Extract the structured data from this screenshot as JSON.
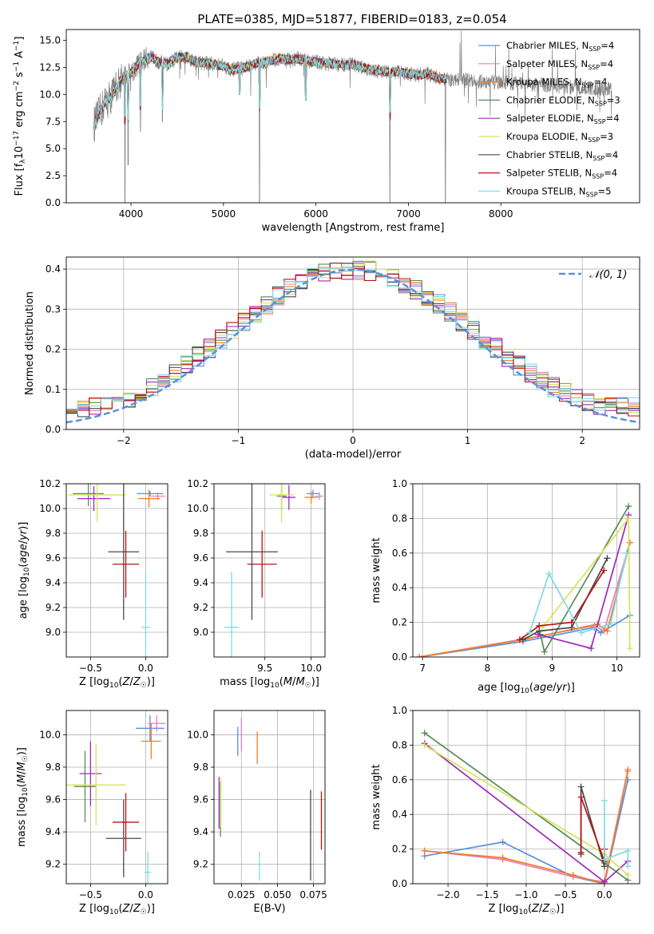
{
  "figure_title": "PLATE=0385, MJD=51877, FIBERID=0183, z=0.054",
  "colors": {
    "Chabrier MILES": "#5b8fdc",
    "Salpeter MILES": "#e57fbf",
    "Kroupa MILES": "#f07f22",
    "Chabrier ELODIE": "#5a8a5a",
    "Salpeter ELODIE": "#9a2bb8",
    "Kroupa ELODIE": "#d6e35a",
    "Chabrier STELIB": "#4a4a4a",
    "Salpeter STELIB": "#b51515",
    "Kroupa STELIB": "#7fdddf",
    "gaussian": "#5b8fdc",
    "spectrum_data": "#808080"
  },
  "chart_data": [
    {
      "id": "spectrum",
      "type": "line",
      "title": "PLATE=0385, MJD=51877, FIBERID=0183, z=0.054",
      "xlabel": "wavelength [Angstrom, rest frame]",
      "ylabel": "Flux [f_λ 10^-17 erg cm^-2 s^-1 A^-1]",
      "xlim": [
        3300,
        9500
      ],
      "ylim": [
        0,
        16
      ],
      "xticks": [
        "4000",
        "5000",
        "6000",
        "7000",
        "8000"
      ],
      "yticks": [
        "0.0",
        "2.5",
        "5.0",
        "7.5",
        "10.0",
        "12.5",
        "15.0"
      ],
      "grid": false,
      "legend_position": "right",
      "legend": [
        {
          "model": "Chabrier MILES",
          "label": "Chabrier MILES, N",
          "nssp": "=4"
        },
        {
          "model": "Salpeter MILES",
          "label": "Salpeter MILES, N",
          "nssp": "=4"
        },
        {
          "model": "Kroupa MILES",
          "label": "Kroupa MILES, N",
          "nssp": "=4"
        },
        {
          "model": "Chabrier ELODIE",
          "label": "Chabrier ELODIE, N",
          "nssp": "=3"
        },
        {
          "model": "Salpeter ELODIE",
          "label": "Salpeter ELODIE, N",
          "nssp": "=4"
        },
        {
          "model": "Kroupa ELODIE",
          "label": "Kroupa ELODIE, N",
          "nssp": "=3"
        },
        {
          "model": "Chabrier STELIB",
          "label": "Chabrier STELIB, N",
          "nssp": "=4"
        },
        {
          "model": "Salpeter STELIB",
          "label": "Salpeter STELIB, N",
          "nssp": "=4"
        },
        {
          "model": "Kroupa STELIB",
          "label": "Kroupa STELIB, N",
          "nssp": "=5"
        }
      ],
      "continuum": [
        [
          3600,
          7.2
        ],
        [
          3700,
          9.0
        ],
        [
          3800,
          10.0
        ],
        [
          3900,
          11.5
        ],
        [
          4000,
          12.0
        ],
        [
          4100,
          13.0
        ],
        [
          4200,
          13.5
        ],
        [
          4300,
          13.0
        ],
        [
          4400,
          12.8
        ],
        [
          4500,
          13.4
        ],
        [
          4600,
          13.5
        ],
        [
          4700,
          13.0
        ],
        [
          4800,
          12.9
        ],
        [
          4900,
          12.8
        ],
        [
          5000,
          12.6
        ],
        [
          5100,
          12.3
        ],
        [
          5200,
          12.4
        ],
        [
          5300,
          12.7
        ],
        [
          5400,
          12.9
        ],
        [
          5500,
          13.1
        ],
        [
          5600,
          13.3
        ],
        [
          5700,
          13.2
        ],
        [
          5800,
          13.3
        ],
        [
          5900,
          13.1
        ],
        [
          6000,
          13.0
        ],
        [
          6100,
          12.9
        ],
        [
          6200,
          12.8
        ],
        [
          6300,
          12.7
        ],
        [
          6400,
          12.8
        ],
        [
          6500,
          12.5
        ],
        [
          6600,
          12.3
        ],
        [
          6700,
          12.2
        ],
        [
          6800,
          12.0
        ],
        [
          6900,
          12.1
        ],
        [
          7000,
          11.9
        ],
        [
          7100,
          11.8
        ],
        [
          7200,
          11.9
        ],
        [
          7300,
          11.6
        ],
        [
          7400,
          11.4
        ]
      ],
      "data_x_range": [
        3600,
        9200
      ],
      "absorption_features": [
        {
          "wavelength": 3934,
          "min_flux": 0.0
        },
        {
          "wavelength": 3969,
          "min_flux": 3.5
        },
        {
          "wavelength": 4102,
          "min_flux": 6.6
        },
        {
          "wavelength": 4340,
          "min_flux": 7.5
        },
        {
          "wavelength": 5175,
          "min_flux": 10.0
        },
        {
          "wavelength": 5390,
          "min_flux": 0.0
        },
        {
          "wavelength": 5890,
          "min_flux": 9.5
        },
        {
          "wavelength": 6800,
          "min_flux": 0.0
        }
      ]
    },
    {
      "id": "residuals",
      "type": "histogram",
      "xlabel": "(data-model)/error",
      "ylabel": "Normed distribution",
      "xlim": [
        -2.5,
        2.5
      ],
      "ylim": [
        0,
        0.43
      ],
      "xticks": [
        "−2",
        "−1",
        "0",
        "1",
        "2"
      ],
      "yticks": [
        "0.0",
        "0.1",
        "0.2",
        "0.3",
        "0.4"
      ],
      "grid": true,
      "legend_position": "top-right",
      "gaussian_label": "𝒩(0, 1)",
      "bin_width": 0.1
    },
    {
      "id": "age_vs_Z",
      "type": "errorbar",
      "xlabel": "Z [log10(Z/Z☉)]",
      "ylabel": "age [log10(age/yr)]",
      "xlim": [
        -0.72,
        0.2
      ],
      "ylim": [
        8.8,
        10.2
      ],
      "xticks": [
        "−0.5",
        "0.0"
      ],
      "yticks": [
        "9.0",
        "9.2",
        "9.4",
        "9.6",
        "9.8",
        "10.0",
        "10.2"
      ],
      "grid": true,
      "points": [
        {
          "model": "Chabrier MILES",
          "x": 0.04,
          "xerr": 0.12,
          "y": 10.12,
          "yerr": 0.02
        },
        {
          "model": "Salpeter MILES",
          "x": 0.11,
          "xerr": 0.07,
          "y": 10.1,
          "yerr": 0.03
        },
        {
          "model": "Kroupa MILES",
          "x": 0.03,
          "xerr": 0.1,
          "y": 10.08,
          "yerr": 0.07
        },
        {
          "model": "Chabrier ELODIE",
          "x": -0.52,
          "xerr": 0.14,
          "y": 10.12,
          "yerr": 0.1
        },
        {
          "model": "Salpeter ELODIE",
          "x": -0.47,
          "xerr": 0.15,
          "y": 10.08,
          "yerr": 0.1
        },
        {
          "model": "Kroupa ELODIE",
          "x": -0.44,
          "xerr": 0.26,
          "y": 10.11,
          "yerr": 0.22
        },
        {
          "model": "Chabrier STELIB",
          "x": -0.2,
          "xerr": 0.14,
          "y": 9.65,
          "yerr": 0.55
        },
        {
          "model": "Salpeter STELIB",
          "x": -0.18,
          "xerr": 0.12,
          "y": 9.55,
          "yerr": 0.27
        },
        {
          "model": "Kroupa STELIB",
          "x": 0.0,
          "xerr": 0.04,
          "y": 9.04,
          "yerr": 0.45
        }
      ]
    },
    {
      "id": "age_vs_mass",
      "type": "errorbar",
      "xlabel": "mass [log10(M/M☉)]",
      "ylabel": "",
      "xlim": [
        8.95,
        10.15
      ],
      "ylim": [
        8.8,
        10.2
      ],
      "xticks": [
        "9.5",
        "10.0"
      ],
      "yticks": [
        "9.0",
        "9.2",
        "9.4",
        "9.6",
        "9.8",
        "10.0",
        "10.2"
      ],
      "grid": true,
      "points": [
        {
          "model": "Chabrier MILES",
          "x": 10.02,
          "xerr": 0.07,
          "y": 10.12,
          "yerr": 0.03
        },
        {
          "model": "Salpeter MILES",
          "x": 10.09,
          "xerr": 0.04,
          "y": 10.1,
          "yerr": 0.03
        },
        {
          "model": "Kroupa MILES",
          "x": 10.0,
          "xerr": 0.07,
          "y": 10.09,
          "yerr": 0.05
        },
        {
          "model": "Chabrier ELODIE",
          "x": 9.68,
          "xerr": 0.05,
          "y": 10.1,
          "yerr": 0.12
        },
        {
          "model": "Salpeter ELODIE",
          "x": 9.76,
          "xerr": 0.07,
          "y": 10.09,
          "yerr": 0.1
        },
        {
          "model": "Kroupa ELODIE",
          "x": 9.68,
          "xerr": 0.13,
          "y": 10.11,
          "yerr": 0.22
        },
        {
          "model": "Chabrier STELIB",
          "x": 9.36,
          "xerr": 0.28,
          "y": 9.65,
          "yerr": 0.55
        },
        {
          "model": "Salpeter STELIB",
          "x": 9.47,
          "xerr": 0.16,
          "y": 9.55,
          "yerr": 0.27
        },
        {
          "model": "Kroupa STELIB",
          "x": 9.14,
          "xerr": 0.08,
          "y": 9.04,
          "yerr": 0.45
        }
      ]
    },
    {
      "id": "mass_weight_vs_age",
      "type": "line",
      "xlabel": "age [log10(age/yr)]",
      "ylabel": "mass weight",
      "xlim": [
        6.85,
        10.35
      ],
      "ylim": [
        0,
        1
      ],
      "xticks": [
        "7",
        "8",
        "9",
        "10"
      ],
      "yticks": [
        "0.0",
        "0.2",
        "0.4",
        "0.6",
        "0.8",
        "1.0"
      ],
      "grid": true,
      "series": [
        {
          "model": "Chabrier MILES",
          "x": [
            6.95,
            8.55,
            9.65,
            9.75,
            10.2
          ],
          "y": [
            0.0,
            0.09,
            0.17,
            0.14,
            0.24
          ]
        },
        {
          "model": "Salpeter MILES",
          "x": [
            6.95,
            8.5,
            9.65,
            9.8,
            10.2
          ],
          "y": [
            0.0,
            0.1,
            0.18,
            0.15,
            0.66
          ]
        },
        {
          "model": "Kroupa MILES",
          "x": [
            6.95,
            8.55,
            9.7,
            9.85,
            10.2
          ],
          "y": [
            0.0,
            0.1,
            0.19,
            0.15,
            0.66
          ]
        },
        {
          "model": "Chabrier ELODIE",
          "x": [
            8.82,
            8.88,
            10.18
          ],
          "y": [
            0.13,
            0.03,
            0.87
          ]
        },
        {
          "model": "Salpeter ELODIE",
          "x": [
            8.78,
            9.6,
            10.18
          ],
          "y": [
            0.13,
            0.05,
            0.82
          ]
        },
        {
          "model": "Kroupa ELODIE",
          "x": [
            8.85,
            10.18,
            10.2
          ],
          "y": [
            0.17,
            0.8,
            0.05
          ]
        },
        {
          "model": "Chabrier STELIB",
          "x": [
            8.55,
            8.8,
            9.3,
            9.85
          ],
          "y": [
            0.1,
            0.15,
            0.17,
            0.57
          ]
        },
        {
          "model": "Salpeter STELIB",
          "x": [
            8.5,
            8.8,
            9.3,
            9.8
          ],
          "y": [
            0.1,
            0.18,
            0.2,
            0.5
          ]
        },
        {
          "model": "Kroupa STELIB",
          "x": [
            8.65,
            8.95,
            9.45,
            9.9,
            10.15
          ],
          "y": [
            0.14,
            0.48,
            0.14,
            0.19,
            0.6
          ]
        }
      ]
    },
    {
      "id": "mass_vs_Z",
      "type": "errorbar",
      "xlabel": "Z [log10(Z/Z☉)]",
      "ylabel": "mass [log10(M/M☉)]",
      "xlim": [
        -0.72,
        0.2
      ],
      "ylim": [
        9.08,
        10.15
      ],
      "xticks": [
        "−0.5",
        "0.0"
      ],
      "yticks": [
        "9.2",
        "9.4",
        "9.6",
        "9.8",
        "10.0"
      ],
      "grid": true,
      "points": [
        {
          "model": "Chabrier MILES",
          "x": 0.04,
          "xerr": 0.13,
          "y": 10.04,
          "yerr": 0.08
        },
        {
          "model": "Salpeter MILES",
          "x": 0.1,
          "xerr": 0.08,
          "y": 10.07,
          "yerr": 0.05
        },
        {
          "model": "Kroupa MILES",
          "x": 0.05,
          "xerr": 0.09,
          "y": 9.96,
          "yerr": 0.11
        },
        {
          "model": "Chabrier ELODIE",
          "x": -0.55,
          "xerr": 0.1,
          "y": 9.68,
          "yerr": 0.22
        },
        {
          "model": "Salpeter ELODIE",
          "x": -0.5,
          "xerr": 0.1,
          "y": 9.76,
          "yerr": 0.2
        },
        {
          "model": "Kroupa ELODIE",
          "x": -0.45,
          "xerr": 0.27,
          "y": 9.69,
          "yerr": 0.25
        },
        {
          "model": "Chabrier STELIB",
          "x": -0.2,
          "xerr": 0.16,
          "y": 9.36,
          "yerr": 0.24
        },
        {
          "model": "Salpeter STELIB",
          "x": -0.18,
          "xerr": 0.12,
          "y": 9.46,
          "yerr": 0.18
        },
        {
          "model": "Kroupa STELIB",
          "x": 0.02,
          "xerr": 0.03,
          "y": 9.15,
          "yerr": 0.13
        }
      ]
    },
    {
      "id": "mass_vs_ebv",
      "type": "errorbar",
      "xlabel": "E(B-V)",
      "ylabel": "",
      "xlim": [
        0.006,
        0.083
      ],
      "ylim": [
        9.08,
        10.15
      ],
      "xticks": [
        "0.025",
        "0.050",
        "0.075"
      ],
      "yticks": [
        "9.2",
        "9.4",
        "9.6",
        "9.8",
        "10.0"
      ],
      "grid": true,
      "points": [
        {
          "model": "Chabrier MILES",
          "x": 0.0225,
          "xerr": 0.0,
          "y": 9.96,
          "yerr": 0.09
        },
        {
          "model": "Salpeter MILES",
          "x": 0.025,
          "xerr": 0.0,
          "y": 10.0,
          "yerr": 0.1
        },
        {
          "model": "Kroupa MILES",
          "x": 0.036,
          "xerr": 0.0,
          "y": 9.92,
          "yerr": 0.1
        },
        {
          "model": "Chabrier ELODIE",
          "x": 0.0105,
          "xerr": 0.0,
          "y": 9.54,
          "yerr": 0.17
        },
        {
          "model": "Salpeter ELODIE",
          "x": 0.0095,
          "xerr": 0.0,
          "y": 9.58,
          "yerr": 0.16
        },
        {
          "model": "Kroupa ELODIE",
          "x": 0.0108,
          "xerr": 0.0,
          "y": 9.58,
          "yerr": 0.15
        },
        {
          "model": "Chabrier STELIB",
          "x": 0.073,
          "xerr": 0.0,
          "y": 9.38,
          "yerr": 0.28
        },
        {
          "model": "Salpeter STELIB",
          "x": 0.0805,
          "xerr": 0.0,
          "y": 9.47,
          "yerr": 0.18
        },
        {
          "model": "Kroupa STELIB",
          "x": 0.0375,
          "xerr": 0.0,
          "y": 9.19,
          "yerr": 0.09
        }
      ]
    },
    {
      "id": "mass_weight_vs_Z",
      "type": "line",
      "xlabel": "Z [log10(Z/Z☉)]",
      "ylabel": "mass weight",
      "xlim": [
        -2.45,
        0.45
      ],
      "ylim": [
        0,
        1
      ],
      "xticks": [
        "−2.0",
        "−1.5",
        "−1.0",
        "−0.5",
        "0.0"
      ],
      "yticks": [
        "0.0",
        "0.2",
        "0.4",
        "0.6",
        "0.8",
        "1.0"
      ],
      "grid": true,
      "series": [
        {
          "model": "Chabrier MILES",
          "x": [
            -2.3,
            -1.3,
            -0.4,
            0.0,
            0.3
          ],
          "y": [
            0.16,
            0.24,
            0.04,
            0.0,
            0.6
          ]
        },
        {
          "model": "Salpeter MILES",
          "x": [
            -2.3,
            -1.3,
            -0.4,
            0.0,
            0.3
          ],
          "y": [
            0.19,
            0.14,
            0.04,
            0.01,
            0.66
          ]
        },
        {
          "model": "Kroupa MILES",
          "x": [
            -2.3,
            -1.3,
            -0.4,
            0.0,
            0.3
          ],
          "y": [
            0.19,
            0.15,
            0.05,
            0.0,
            0.65
          ]
        },
        {
          "model": "Chabrier ELODIE",
          "x": [
            -2.3,
            0.0,
            0.3
          ],
          "y": [
            0.87,
            0.12,
            0.02
          ]
        },
        {
          "model": "Salpeter ELODIE",
          "x": [
            -2.3,
            0.0,
            0.3
          ],
          "y": [
            0.81,
            0.01,
            0.13
          ]
        },
        {
          "model": "Kroupa ELODIE",
          "x": [
            -2.3,
            0.0,
            0.3
          ],
          "y": [
            0.8,
            0.17,
            0.05
          ]
        },
        {
          "model": "Chabrier STELIB",
          "x": [
            -0.3,
            -0.3,
            0.0,
            0.0
          ],
          "y": [
            0.17,
            0.56,
            0.1,
            0.2
          ]
        },
        {
          "model": "Salpeter STELIB",
          "x": [
            -0.3,
            -0.3,
            0.0,
            0.0
          ],
          "y": [
            0.18,
            0.5,
            0.13,
            0.2
          ]
        },
        {
          "model": "Kroupa STELIB",
          "x": [
            0.0,
            0.0,
            0.3,
            0.3
          ],
          "y": [
            0.48,
            0.14,
            0.19,
            0.1
          ]
        }
      ]
    }
  ]
}
